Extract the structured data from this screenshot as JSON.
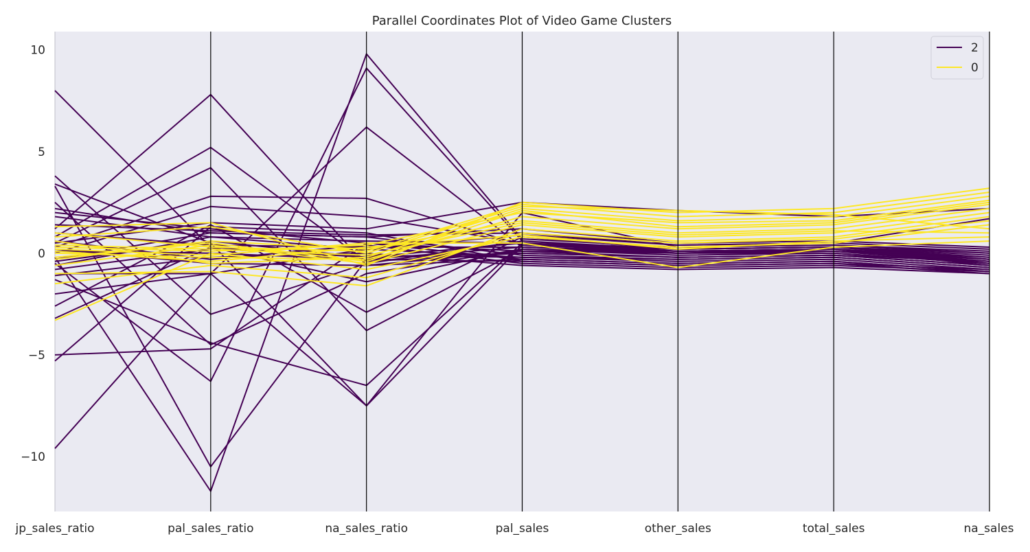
{
  "chart_data": {
    "type": "parallel_coordinates",
    "title": "Parallel Coordinates Plot of Video Game Clusters",
    "axes": [
      "jp_sales_ratio",
      "pal_sales_ratio",
      "na_sales_ratio",
      "pal_sales",
      "other_sales",
      "total_sales",
      "na_sales"
    ],
    "ylim": [
      -12.7,
      10.9
    ],
    "yticks": [
      10,
      5,
      0,
      -5,
      -10
    ],
    "ytick_labels": [
      "10",
      "5",
      "0",
      "−5",
      "−10"
    ],
    "grid": false,
    "legend_position": "top-right",
    "colors": {
      "2": "#440154",
      "0": "#fde725",
      "background": "#eaeaf2",
      "axis_line": "#000000"
    },
    "series": [
      {
        "name": "2",
        "color": "#440154",
        "lines": [
          [
            8.0,
            0.3,
            -0.2,
            0.5,
            0.0,
            0.2,
            -0.5
          ],
          [
            3.8,
            -3.0,
            -0.5,
            0.6,
            0.1,
            0.2,
            -0.4
          ],
          [
            3.4,
            0.5,
            -7.5,
            0.4,
            0.2,
            0.3,
            -0.3
          ],
          [
            3.3,
            -10.5,
            -0.3,
            0.3,
            0.1,
            0.2,
            -0.6
          ],
          [
            2.5,
            -4.5,
            -1.0,
            0.2,
            0.0,
            0.1,
            -0.5
          ],
          [
            2.2,
            1.0,
            0.8,
            -0.1,
            -0.3,
            -0.2,
            -0.7
          ],
          [
            2.0,
            1.2,
            0.5,
            0.1,
            0.0,
            0.0,
            -0.5
          ],
          [
            1.8,
            0.8,
            0.2,
            -0.2,
            -0.4,
            -0.3,
            -0.8
          ],
          [
            1.2,
            7.8,
            -0.6,
            -0.3,
            -0.5,
            -0.4,
            -0.9
          ],
          [
            0.8,
            5.2,
            -0.4,
            0.0,
            -0.2,
            -0.1,
            -0.6
          ],
          [
            0.5,
            4.2,
            -3.8,
            0.2,
            0.0,
            0.1,
            -0.4
          ],
          [
            0.3,
            2.8,
            2.7,
            0.4,
            0.1,
            0.2,
            -0.3
          ],
          [
            0.0,
            2.3,
            1.8,
            0.5,
            0.2,
            0.3,
            -0.2
          ],
          [
            -0.2,
            -11.7,
            9.8,
            0.7,
            0.3,
            0.4,
            0.0
          ],
          [
            -0.5,
            -6.3,
            9.1,
            0.6,
            0.2,
            0.3,
            -0.1
          ],
          [
            -1.0,
            -1.0,
            6.2,
            0.3,
            0.0,
            0.1,
            -0.4
          ],
          [
            -1.3,
            -4.4,
            -6.5,
            0.5,
            0.1,
            0.2,
            -0.3
          ],
          [
            -2.0,
            -1.0,
            -7.5,
            2.0,
            0.3,
            0.4,
            0.1
          ],
          [
            -2.6,
            1.4,
            -2.9,
            0.8,
            0.2,
            0.3,
            0.0
          ],
          [
            -3.2,
            0.3,
            -1.4,
            0.2,
            -0.1,
            0.0,
            -0.5
          ],
          [
            -5.0,
            -4.7,
            0.5,
            -0.3,
            -0.5,
            -0.4,
            -0.9
          ],
          [
            -5.3,
            1.3,
            1.0,
            -0.4,
            -0.6,
            -0.5,
            -1.0
          ],
          [
            -9.6,
            -1.0,
            0.2,
            0.9,
            0.4,
            0.5,
            1.7
          ],
          [
            0.5,
            1.5,
            1.2,
            2.5,
            2.1,
            1.8,
            2.2
          ],
          [
            -0.3,
            1.0,
            0.8,
            1.2,
            0.5,
            0.6,
            0.3
          ],
          [
            0.2,
            -0.5,
            -0.6,
            0.1,
            -0.2,
            -0.1,
            -0.4
          ],
          [
            1.0,
            0.4,
            0.3,
            0.3,
            0.1,
            0.1,
            -0.3
          ],
          [
            -0.8,
            0.2,
            -0.1,
            -0.2,
            -0.3,
            -0.2,
            -0.7
          ],
          [
            0.6,
            -0.3,
            0.4,
            -0.5,
            -0.7,
            -0.6,
            -0.9
          ],
          [
            -0.4,
            0.6,
            -0.2,
            0.0,
            -0.2,
            -0.1,
            -0.6
          ],
          [
            1.4,
            1.1,
            0.9,
            1.0,
            0.4,
            0.5,
            0.2
          ],
          [
            -1.1,
            -0.2,
            0.0,
            -0.6,
            -0.8,
            -0.7,
            -1.0
          ],
          [
            0.1,
            0.0,
            -0.3,
            -0.4,
            -0.6,
            -0.5,
            -0.8
          ],
          [
            -0.6,
            0.8,
            0.6,
            0.5,
            0.0,
            0.2,
            -0.2
          ]
        ]
      },
      {
        "name": "0",
        "color": "#fde725",
        "lines": [
          [
            1.3,
            1.5,
            -0.6,
            2.5,
            2.0,
            2.2,
            3.2
          ],
          [
            1.0,
            0.3,
            0.1,
            2.4,
            1.8,
            2.0,
            3.0
          ],
          [
            0.6,
            -0.5,
            -0.2,
            2.2,
            1.6,
            1.8,
            2.8
          ],
          [
            0.3,
            0.1,
            0.4,
            2.0,
            1.5,
            1.6,
            2.6
          ],
          [
            0.0,
            -0.2,
            -0.3,
            1.8,
            1.2,
            1.4,
            2.4
          ],
          [
            -0.3,
            0.6,
            0.2,
            1.6,
            1.0,
            1.2,
            2.2
          ],
          [
            -0.6,
            0.4,
            -0.5,
            1.4,
            0.8,
            1.0,
            2.0
          ],
          [
            -1.0,
            -0.9,
            -1.6,
            1.2,
            0.6,
            0.8,
            1.8
          ],
          [
            -1.5,
            -0.6,
            -1.2,
            1.0,
            0.5,
            0.7,
            1.6
          ],
          [
            -3.3,
            0.0,
            -0.8,
            0.8,
            0.3,
            0.5,
            1.4
          ],
          [
            0.8,
            1.3,
            0.0,
            2.3,
            2.1,
            1.9,
            1.2
          ],
          [
            0.4,
            0.2,
            -0.1,
            1.5,
            0.9,
            1.1,
            1.0
          ],
          [
            0.1,
            -0.4,
            0.3,
            0.9,
            0.2,
            0.6,
            0.8
          ],
          [
            -0.2,
            0.5,
            -0.4,
            2.1,
            1.3,
            1.5,
            2.5
          ],
          [
            0.2,
            -0.1,
            0.5,
            0.5,
            -0.7,
            0.3,
            0.6
          ]
        ]
      }
    ]
  }
}
